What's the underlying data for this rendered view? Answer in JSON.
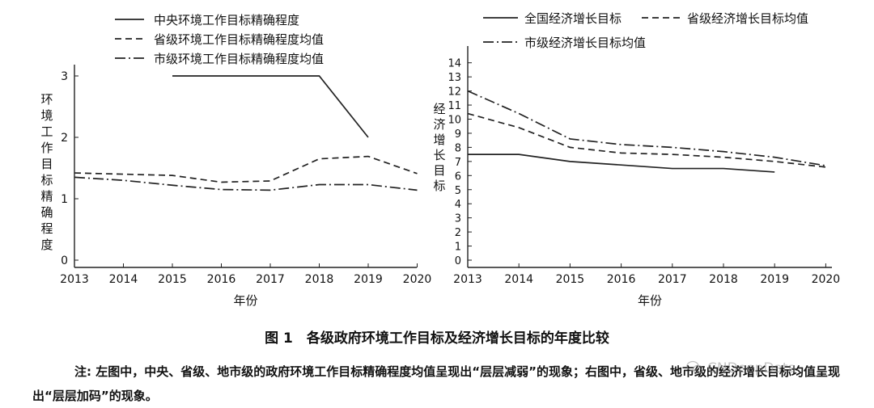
{
  "figure": {
    "title": "图 1　各级政府环境工作目标及经济增长目标的年度比较",
    "note": "注: 左图中，中央、省级、地市级的政府环境工作目标精确程度均值呈现出“层层减弱”的现象；右图中，省级、地市级的经济增长目标均值呈现出“层层加码”的现象。",
    "watermark": "CNDeepData"
  },
  "chart_data": [
    {
      "type": "line",
      "title": "",
      "xlabel": "年份",
      "ylabel": "环境工作目标精确程度",
      "x": [
        "2013",
        "2014",
        "2015",
        "2016",
        "2017",
        "2018",
        "2019",
        "2020"
      ],
      "yticks": [
        "0",
        "1",
        "2",
        "3"
      ],
      "ylim": [
        0,
        3.2
      ],
      "legend_position": "top",
      "series": [
        {
          "name": "中央环境工作目标精确程度",
          "style": "solid",
          "values": [
            null,
            null,
            3.0,
            3.0,
            3.0,
            3.0,
            2.0,
            null
          ]
        },
        {
          "name": "省级环境工作目标精确程度均值",
          "style": "dashed",
          "values": [
            1.42,
            1.4,
            1.38,
            1.27,
            1.29,
            1.65,
            1.69,
            1.41
          ]
        },
        {
          "name": "市级环境工作目标精确程度均值",
          "style": "dashdot",
          "values": [
            1.35,
            1.3,
            1.22,
            1.15,
            1.14,
            1.23,
            1.23,
            1.14
          ]
        }
      ]
    },
    {
      "type": "line",
      "title": "",
      "xlabel": "年份",
      "ylabel": "经济增长目标",
      "x": [
        "2013",
        "2014",
        "2015",
        "2016",
        "2017",
        "2018",
        "2019",
        "2020"
      ],
      "yticks": [
        "0",
        "1",
        "2",
        "3",
        "4",
        "5",
        "6",
        "7",
        "8",
        "9",
        "10",
        "11",
        "12",
        "13",
        "14"
      ],
      "ylim": [
        0,
        14.5
      ],
      "legend_position": "top",
      "series": [
        {
          "name": "全国经济增长目标",
          "style": "solid",
          "values": [
            7.5,
            7.5,
            7.0,
            6.75,
            6.5,
            6.5,
            6.25,
            null
          ]
        },
        {
          "name": "省级经济增长目标均值",
          "style": "dashed",
          "values": [
            10.4,
            9.4,
            8.0,
            7.6,
            7.5,
            7.3,
            7.0,
            6.6
          ]
        },
        {
          "name": "市级经济增长目标均值",
          "style": "dashdot",
          "values": [
            12.0,
            10.4,
            8.6,
            8.2,
            8.0,
            7.7,
            7.3,
            6.7
          ]
        }
      ]
    }
  ]
}
